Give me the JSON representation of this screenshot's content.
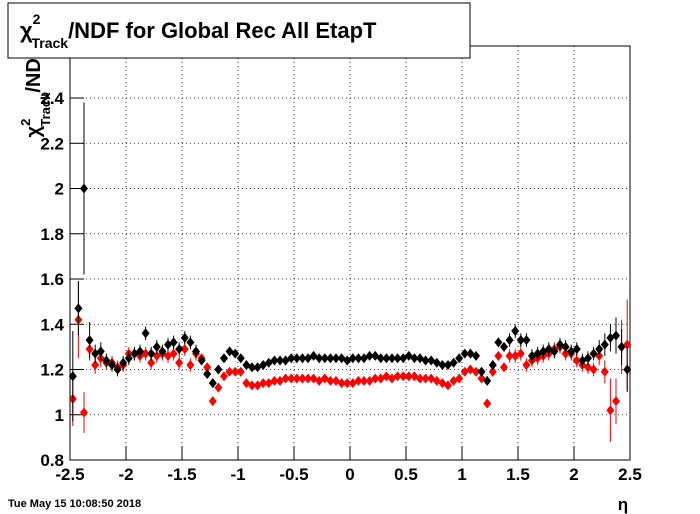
{
  "chart_data": {
    "type": "scatter",
    "title": {
      "symbol": "χ",
      "superscript": "2",
      "subscript": "Track",
      "text": "/NDF for Global Rec All EtapT"
    },
    "y_label": {
      "symbol": "χ",
      "superscript": "2",
      "subscript": "Track",
      "text": "/NDF"
    },
    "x_label": "η",
    "timestamp": "Tue May 15 10:08:50 2018",
    "xlim": [
      -2.5,
      2.5
    ],
    "xticks": [
      -2.5,
      -2,
      -1.5,
      -1,
      -0.5,
      0,
      0.5,
      1,
      1.5,
      2,
      2.5
    ],
    "ylim": [
      0.8,
      2.63
    ],
    "yticks": [
      0.8,
      1,
      1.2,
      1.4,
      1.6,
      1.8,
      2,
      2.2,
      2.4
    ],
    "grid": true,
    "x": [
      -2.475,
      -2.425,
      -2.375,
      -2.325,
      -2.275,
      -2.225,
      -2.175,
      -2.125,
      -2.075,
      -2.025,
      -1.975,
      -1.925,
      -1.875,
      -1.825,
      -1.775,
      -1.725,
      -1.675,
      -1.625,
      -1.575,
      -1.525,
      -1.475,
      -1.425,
      -1.375,
      -1.325,
      -1.275,
      -1.225,
      -1.175,
      -1.125,
      -1.075,
      -1.025,
      -0.975,
      -0.925,
      -0.875,
      -0.825,
      -0.775,
      -0.725,
      -0.675,
      -0.625,
      -0.575,
      -0.525,
      -0.475,
      -0.425,
      -0.375,
      -0.325,
      -0.275,
      -0.225,
      -0.175,
      -0.125,
      -0.075,
      -0.025,
      0.025,
      0.075,
      0.125,
      0.175,
      0.225,
      0.275,
      0.325,
      0.375,
      0.425,
      0.475,
      0.525,
      0.575,
      0.625,
      0.675,
      0.725,
      0.775,
      0.825,
      0.875,
      0.925,
      0.975,
      1.025,
      1.075,
      1.125,
      1.175,
      1.225,
      1.275,
      1.325,
      1.375,
      1.425,
      1.475,
      1.525,
      1.575,
      1.625,
      1.675,
      1.725,
      1.775,
      1.825,
      1.875,
      1.925,
      1.975,
      2.025,
      2.075,
      2.125,
      2.175,
      2.225,
      2.275,
      2.325,
      2.375,
      2.425,
      2.475
    ],
    "series": [
      {
        "color": "#ff0000",
        "values": [
          1.07,
          1.42,
          1.01,
          1.29,
          1.22,
          1.25,
          1.23,
          1.23,
          1.21,
          1.22,
          1.27,
          1.27,
          1.26,
          1.27,
          1.23,
          1.26,
          1.27,
          1.26,
          1.27,
          1.23,
          1.29,
          1.22,
          1.27,
          1.25,
          1.21,
          1.06,
          1.12,
          1.17,
          1.19,
          1.19,
          1.19,
          1.14,
          1.13,
          1.13,
          1.14,
          1.14,
          1.15,
          1.15,
          1.16,
          1.16,
          1.16,
          1.16,
          1.16,
          1.16,
          1.15,
          1.16,
          1.15,
          1.15,
          1.14,
          1.14,
          1.14,
          1.15,
          1.15,
          1.15,
          1.16,
          1.16,
          1.17,
          1.16,
          1.17,
          1.17,
          1.17,
          1.17,
          1.16,
          1.16,
          1.16,
          1.15,
          1.14,
          1.13,
          1.15,
          1.16,
          1.19,
          1.2,
          1.19,
          1.16,
          1.05,
          1.19,
          1.26,
          1.21,
          1.26,
          1.26,
          1.27,
          1.22,
          1.24,
          1.25,
          1.26,
          1.27,
          1.29,
          1.3,
          1.27,
          1.27,
          1.24,
          1.22,
          1.21,
          1.2,
          1.26,
          1.19,
          1.02,
          1.06,
          1.3,
          1.31
        ],
        "errors": [
          0.12,
          0.17,
          0.09,
          0.05,
          0.04,
          0.04,
          0.03,
          0.03,
          0.03,
          0.03,
          0.03,
          0.03,
          0.03,
          0.03,
          0.03,
          0.03,
          0.03,
          0.03,
          0.03,
          0.03,
          0.03,
          0.03,
          0.03,
          0.02,
          0.02,
          0.02,
          0.02,
          0.01,
          0.01,
          0.01,
          0.01,
          0.01,
          0.01,
          0.01,
          0.01,
          0.01,
          0.01,
          0.01,
          0.01,
          0.01,
          0.01,
          0.01,
          0.01,
          0.01,
          0.01,
          0.01,
          0.01,
          0.01,
          0.01,
          0.01,
          0.01,
          0.01,
          0.01,
          0.01,
          0.01,
          0.01,
          0.01,
          0.01,
          0.01,
          0.01,
          0.01,
          0.01,
          0.01,
          0.01,
          0.01,
          0.01,
          0.01,
          0.01,
          0.01,
          0.01,
          0.01,
          0.01,
          0.01,
          0.02,
          0.02,
          0.02,
          0.02,
          0.02,
          0.03,
          0.03,
          0.03,
          0.03,
          0.03,
          0.03,
          0.03,
          0.03,
          0.03,
          0.03,
          0.03,
          0.03,
          0.03,
          0.03,
          0.03,
          0.03,
          0.04,
          0.05,
          0.14,
          0.1,
          0.12,
          0.2
        ]
      },
      {
        "color": "#000000",
        "values": [
          1.17,
          1.47,
          2.0,
          1.33,
          1.27,
          1.28,
          1.24,
          1.22,
          1.2,
          1.23,
          1.25,
          1.27,
          1.28,
          1.36,
          1.27,
          1.3,
          1.28,
          1.31,
          1.32,
          1.29,
          1.34,
          1.32,
          1.28,
          1.24,
          1.18,
          1.14,
          1.2,
          1.25,
          1.28,
          1.27,
          1.25,
          1.22,
          1.21,
          1.21,
          1.22,
          1.23,
          1.24,
          1.24,
          1.24,
          1.25,
          1.25,
          1.25,
          1.25,
          1.26,
          1.25,
          1.25,
          1.25,
          1.25,
          1.25,
          1.24,
          1.25,
          1.25,
          1.25,
          1.26,
          1.26,
          1.25,
          1.25,
          1.25,
          1.25,
          1.25,
          1.26,
          1.25,
          1.25,
          1.24,
          1.24,
          1.23,
          1.22,
          1.22,
          1.23,
          1.25,
          1.27,
          1.27,
          1.26,
          1.19,
          1.15,
          1.22,
          1.32,
          1.3,
          1.33,
          1.37,
          1.33,
          1.33,
          1.26,
          1.27,
          1.28,
          1.29,
          1.28,
          1.31,
          1.3,
          1.28,
          1.29,
          1.24,
          1.25,
          1.27,
          1.29,
          1.31,
          1.34,
          1.35,
          1.3,
          1.2
        ],
        "errors": [
          0.2,
          0.12,
          0.38,
          0.08,
          0.04,
          0.04,
          0.03,
          0.03,
          0.03,
          0.03,
          0.03,
          0.03,
          0.03,
          0.03,
          0.03,
          0.03,
          0.03,
          0.03,
          0.03,
          0.03,
          0.03,
          0.03,
          0.03,
          0.02,
          0.02,
          0.02,
          0.02,
          0.01,
          0.01,
          0.01,
          0.01,
          0.01,
          0.01,
          0.01,
          0.01,
          0.01,
          0.01,
          0.01,
          0.01,
          0.01,
          0.01,
          0.01,
          0.01,
          0.01,
          0.01,
          0.01,
          0.01,
          0.01,
          0.01,
          0.01,
          0.01,
          0.01,
          0.01,
          0.01,
          0.01,
          0.01,
          0.01,
          0.01,
          0.01,
          0.01,
          0.01,
          0.01,
          0.01,
          0.01,
          0.01,
          0.01,
          0.01,
          0.01,
          0.01,
          0.01,
          0.01,
          0.01,
          0.01,
          0.02,
          0.02,
          0.02,
          0.02,
          0.02,
          0.03,
          0.03,
          0.03,
          0.03,
          0.03,
          0.03,
          0.03,
          0.03,
          0.03,
          0.03,
          0.03,
          0.03,
          0.03,
          0.03,
          0.03,
          0.03,
          0.04,
          0.05,
          0.06,
          0.08,
          0.08,
          0.1
        ]
      }
    ]
  }
}
